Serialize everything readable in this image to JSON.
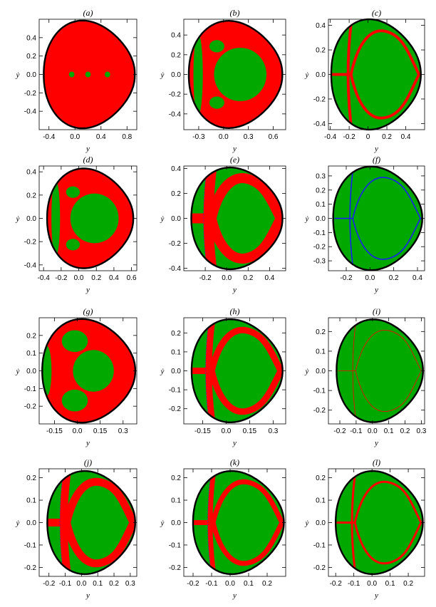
{
  "colors": {
    "green": "#00a800",
    "red": "#ff0000",
    "blue": "#1a1aff",
    "boundary": "#000000",
    "frame": "#000000"
  },
  "chart_data": [
    {
      "type": "heatmap",
      "title": "(a)",
      "xlabel": "y",
      "ylabel": "ẏ",
      "xlim": [
        -0.55,
        0.95
      ],
      "ylim": [
        -0.6,
        0.6
      ],
      "xticks": [
        -0.4,
        0.0,
        0.4,
        0.8
      ],
      "xtick_labels": [
        "-0.4",
        "0.0",
        "0.4",
        "0.8"
      ],
      "yticks": [
        -0.4,
        -0.2,
        0.0,
        0.2,
        0.4
      ],
      "ytick_labels": [
        "-0.4",
        "-0.2",
        "0.0",
        "0.2",
        "0.4"
      ],
      "boundary": {
        "ymin": -0.48,
        "ymax": 0.92,
        "vmax": 0.56
      },
      "base": "red",
      "features": [
        {
          "kind": "spots",
          "color": "green",
          "x": [
            -0.05,
            0.2,
            0.5
          ],
          "y": 0.0
        }
      ]
    },
    {
      "type": "heatmap",
      "title": "(b)",
      "xlabel": "y",
      "ylabel": "ẏ",
      "xlim": [
        -0.48,
        0.75
      ],
      "ylim": [
        -0.56,
        0.56
      ],
      "xticks": [
        -0.3,
        0.0,
        0.3,
        0.6
      ],
      "xtick_labels": [
        "-0.3",
        "0.0",
        "0.3",
        "0.6"
      ],
      "yticks": [
        -0.4,
        -0.2,
        0.0,
        0.2,
        0.4
      ],
      "ytick_labels": [
        "-0.4",
        "-0.2",
        "0.0",
        "0.2",
        "0.4"
      ],
      "boundary": {
        "ymin": -0.42,
        "ymax": 0.71,
        "vmax": 0.52
      },
      "base": "red",
      "features": [
        {
          "kind": "island",
          "color": "green"
        },
        {
          "kind": "crescent",
          "color": "green"
        }
      ]
    },
    {
      "type": "heatmap",
      "title": "(c)",
      "xlabel": "y",
      "ylabel": "ẏ",
      "xlim": [
        -0.42,
        0.6
      ],
      "ylim": [
        -0.45,
        0.45
      ],
      "xticks": [
        -0.4,
        -0.2,
        0.0,
        0.2,
        0.4
      ],
      "xtick_labels": [
        "-0.4",
        "-0.2",
        "0",
        "0.2",
        "0.4"
      ],
      "yticks": [
        -0.4,
        -0.2,
        0.0,
        0.2,
        0.4
      ],
      "ytick_labels": [
        "-0.4",
        "-0.2",
        "0.0",
        "0.2",
        "0.4"
      ],
      "boundary": {
        "ymin": -0.39,
        "ymax": 0.56,
        "vmax": 0.43
      },
      "base": "green",
      "features": [
        {
          "kind": "web",
          "color": "red",
          "width": 4
        }
      ]
    },
    {
      "type": "heatmap",
      "title": "(d)",
      "xlabel": "y",
      "ylabel": "ẏ",
      "xlim": [
        -0.45,
        0.66
      ],
      "ylim": [
        -0.45,
        0.45
      ],
      "xticks": [
        -0.4,
        -0.2,
        0.0,
        0.2,
        0.4,
        0.6
      ],
      "xtick_labels": [
        "-0.4",
        "-0.2",
        "0.0",
        "0.2",
        "0.4",
        "0.6"
      ],
      "yticks": [
        -0.4,
        -0.2,
        0.0,
        0.2,
        0.4
      ],
      "ytick_labels": [
        "-0.4",
        "-0.2",
        "0.0",
        "0.2",
        "0.4"
      ],
      "boundary": {
        "ymin": -0.36,
        "ymax": 0.62,
        "vmax": 0.41
      },
      "base": "red",
      "features": [
        {
          "kind": "island",
          "color": "green"
        },
        {
          "kind": "crescent",
          "color": "green"
        }
      ]
    },
    {
      "type": "heatmap",
      "title": "(e)",
      "xlabel": "y",
      "ylabel": "ẏ",
      "xlim": [
        -0.4,
        0.55
      ],
      "ylim": [
        -0.42,
        0.42
      ],
      "xticks": [
        -0.2,
        0.0,
        0.2,
        0.4
      ],
      "xtick_labels": [
        "-0.2",
        "0.0",
        "0.2",
        "0.4"
      ],
      "yticks": [
        -0.4,
        -0.2,
        0.0,
        0.2,
        0.4
      ],
      "ytick_labels": [
        "-0.4",
        "-0.2",
        "0.0",
        "0.2",
        "0.4"
      ],
      "boundary": {
        "ymin": -0.33,
        "ymax": 0.52,
        "vmax": 0.39
      },
      "base": "green",
      "features": [
        {
          "kind": "web",
          "color": "red",
          "width": 14
        }
      ]
    },
    {
      "type": "heatmap",
      "title": "(f)",
      "xlabel": "y",
      "ylabel": "ẏ",
      "xlim": [
        -0.35,
        0.46
      ],
      "ylim": [
        -0.37,
        0.37
      ],
      "xticks": [
        -0.2,
        0.0,
        0.2,
        0.4
      ],
      "xtick_labels": [
        "-0.2",
        "0.0",
        "0.2",
        "0.4"
      ],
      "yticks": [
        -0.3,
        -0.2,
        -0.1,
        0.0,
        0.1,
        0.2,
        0.3
      ],
      "ytick_labels": [
        "-0.3",
        "-0.2",
        "-0.1",
        "0.0",
        "0.1",
        "0.2",
        "0.3"
      ],
      "boundary": {
        "ymin": -0.31,
        "ymax": 0.44,
        "vmax": 0.35
      },
      "base": "green",
      "features": [
        {
          "kind": "web",
          "color": "blue",
          "width": 1.5
        }
      ]
    },
    {
      "type": "heatmap",
      "title": "(g)",
      "xlabel": "y",
      "ylabel": "ẏ",
      "xlim": [
        -0.25,
        0.39
      ],
      "ylim": [
        -0.3,
        0.3
      ],
      "xticks": [
        -0.15,
        0.0,
        0.15,
        0.3
      ],
      "xtick_labels": [
        "-0.15",
        "0.0",
        "0.15",
        "0.3"
      ],
      "yticks": [
        -0.2,
        -0.1,
        0.0,
        0.1,
        0.2
      ],
      "ytick_labels": [
        "-0.2",
        "-0.1",
        "0.0",
        "0.1",
        "0.2"
      ],
      "boundary": {
        "ymin": -0.23,
        "ymax": 0.38,
        "vmax": 0.28
      },
      "base": "red",
      "features": [
        {
          "kind": "lobes",
          "color": "green"
        }
      ]
    },
    {
      "type": "heatmap",
      "title": "(h)",
      "xlabel": "y",
      "ylabel": "ẏ",
      "xlim": [
        -0.27,
        0.38
      ],
      "ylim": [
        -0.28,
        0.28
      ],
      "xticks": [
        -0.15,
        0.0,
        0.15,
        0.3
      ],
      "xtick_labels": [
        "-0.15",
        "0.0",
        "0.15",
        "0.3"
      ],
      "yticks": [
        -0.2,
        -0.1,
        0.0,
        0.1,
        0.2
      ],
      "ytick_labels": [
        "-0.2",
        "-0.1",
        "0.0",
        "0.1",
        "0.2"
      ],
      "boundary": {
        "ymin": -0.22,
        "ymax": 0.36,
        "vmax": 0.26
      },
      "base": "green",
      "features": [
        {
          "kind": "web",
          "color": "red",
          "width": 9
        }
      ]
    },
    {
      "type": "heatmap",
      "title": "(i)",
      "xlabel": "y",
      "ylabel": "ẏ",
      "xlim": [
        -0.27,
        0.32
      ],
      "ylim": [
        -0.27,
        0.27
      ],
      "xticks": [
        -0.2,
        -0.1,
        0.0,
        0.1,
        0.2,
        0.3
      ],
      "xtick_labels": [
        "-0.2",
        "-0.1",
        "0.0",
        "0.1",
        "0.2",
        "0.3"
      ],
      "yticks": [
        -0.2,
        -0.1,
        0.0,
        0.1,
        0.2
      ],
      "ytick_labels": [
        "-0.2",
        "-0.1",
        "0.0",
        "0.1",
        "0.2"
      ],
      "boundary": {
        "ymin": -0.22,
        "ymax": 0.31,
        "vmax": 0.25
      },
      "base": "green",
      "features": [
        {
          "kind": "web",
          "color": "red",
          "width": 0.8
        }
      ]
    },
    {
      "type": "heatmap",
      "title": "(j)",
      "xlabel": "y",
      "ylabel": "ẏ",
      "xlim": [
        -0.26,
        0.34
      ],
      "ylim": [
        -0.24,
        0.24
      ],
      "xticks": [
        -0.2,
        -0.1,
        0.0,
        0.1,
        0.2,
        0.3
      ],
      "xtick_labels": [
        "-0.2",
        "-0.1",
        "0.0",
        "0.1",
        "0.2",
        "0.3"
      ],
      "yticks": [
        -0.2,
        -0.1,
        0.0,
        0.1,
        0.2
      ],
      "ytick_labels": [
        "-0.2",
        "-0.1",
        "0.0",
        "0.1",
        "0.2"
      ],
      "boundary": {
        "ymin": -0.21,
        "ymax": 0.33,
        "vmax": 0.22
      },
      "base": "green",
      "features": [
        {
          "kind": "web",
          "color": "red",
          "width": 11
        }
      ]
    },
    {
      "type": "heatmap",
      "title": "(k)",
      "xlabel": "y",
      "ylabel": "ẏ",
      "xlim": [
        -0.25,
        0.3
      ],
      "ylim": [
        -0.24,
        0.24
      ],
      "xticks": [
        -0.2,
        -0.1,
        0.0,
        0.1,
        0.2
      ],
      "xtick_labels": [
        "-0.2",
        "-0.1",
        "0.0",
        "0.1",
        "0.2"
      ],
      "yticks": [
        -0.2,
        -0.1,
        0.0,
        0.1,
        0.2
      ],
      "ytick_labels": [
        "-0.2",
        "-0.1",
        "0.0",
        "0.1",
        "0.2"
      ],
      "boundary": {
        "ymin": -0.2,
        "ymax": 0.29,
        "vmax": 0.22
      },
      "base": "green",
      "features": [
        {
          "kind": "web",
          "color": "red",
          "width": 7
        }
      ]
    },
    {
      "type": "heatmap",
      "title": "(l)",
      "xlabel": "y",
      "ylabel": "ẏ",
      "xlim": [
        -0.24,
        0.29
      ],
      "ylim": [
        -0.24,
        0.24
      ],
      "xticks": [
        -0.2,
        -0.1,
        0.0,
        0.1,
        0.2
      ],
      "xtick_labels": [
        "-0.2",
        "-0.1",
        "0.0",
        "0.1",
        "0.2"
      ],
      "yticks": [
        -0.2,
        -0.1,
        0.0,
        0.1,
        0.2
      ],
      "ytick_labels": [
        "-0.2",
        "-0.1",
        "0.0",
        "0.1",
        "0.2"
      ],
      "boundary": {
        "ymin": -0.2,
        "ymax": 0.28,
        "vmax": 0.22
      },
      "base": "green",
      "features": [
        {
          "kind": "web",
          "color": "red",
          "width": 3
        }
      ]
    }
  ]
}
